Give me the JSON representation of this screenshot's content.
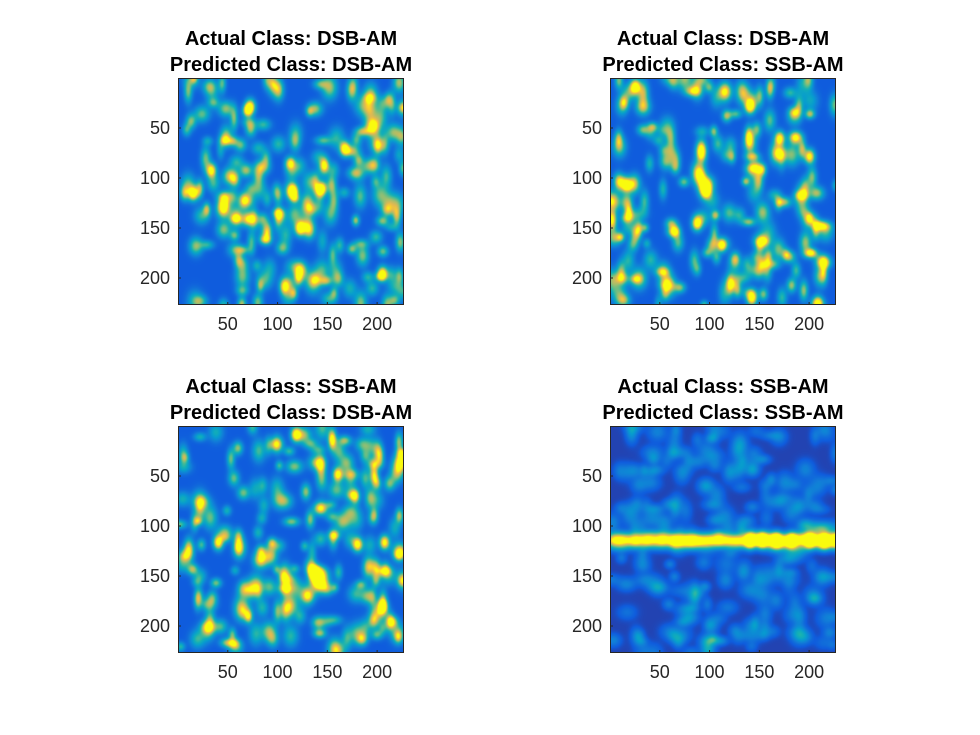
{
  "chart_data": [
    {
      "type": "heatmap",
      "title": [
        "Actual Class: DSB-AM",
        "Predicted Class: DSB-AM"
      ],
      "xlim": [
        0,
        227
      ],
      "ylim": [
        0,
        227
      ],
      "y_reversed": true,
      "xticks": [
        50,
        100,
        150,
        200
      ],
      "yticks": [
        50,
        100,
        150,
        200
      ],
      "xlabel": "",
      "ylabel": "",
      "colormap": "parula",
      "pattern": "scattered",
      "seed": 11,
      "hotspots": [
        [
          15,
          115
        ],
        [
          33,
          92
        ],
        [
          115,
          113
        ],
        [
          142,
          112
        ],
        [
          167,
          70
        ],
        [
          72,
          28
        ],
        [
          205,
          195
        ],
        [
          122,
          150
        ]
      ]
    },
    {
      "type": "heatmap",
      "title": [
        "Actual Class: DSB-AM",
        "Predicted Class: SSB-AM"
      ],
      "xlim": [
        0,
        227
      ],
      "ylim": [
        0,
        227
      ],
      "y_reversed": true,
      "xticks": [
        50,
        100,
        150,
        200
      ],
      "yticks": [
        50,
        100,
        150,
        200
      ],
      "xlabel": "",
      "ylabel": "",
      "colormap": "parula",
      "pattern": "scattered",
      "seed": 23,
      "hotspots": [
        [
          96,
          112
        ],
        [
          142,
          220
        ],
        [
          170,
          60
        ],
        [
          200,
          78
        ],
        [
          87,
          145
        ],
        [
          25,
          8
        ],
        [
          140,
          28
        ]
      ]
    },
    {
      "type": "heatmap",
      "title": [
        "Actual Class: SSB-AM",
        "Predicted Class: DSB-AM"
      ],
      "xlim": [
        0,
        227
      ],
      "ylim": [
        0,
        227
      ],
      "y_reversed": true,
      "xticks": [
        50,
        100,
        150,
        200
      ],
      "yticks": [
        50,
        100,
        150,
        200
      ],
      "xlabel": "",
      "ylabel": "",
      "colormap": "parula",
      "pattern": "scattered",
      "seed": 37,
      "hotspots": [
        [
          40,
          116
        ],
        [
          160,
          48
        ],
        [
          180,
          118
        ],
        [
          207,
          116
        ],
        [
          135,
          146
        ],
        [
          205,
          180
        ],
        [
          118,
          8
        ]
      ]
    },
    {
      "type": "heatmap",
      "title": [
        "Actual Class: SSB-AM",
        "Predicted Class: SSB-AM"
      ],
      "xlim": [
        0,
        227
      ],
      "ylim": [
        0,
        227
      ],
      "y_reversed": true,
      "xticks": [
        50,
        100,
        150,
        200
      ],
      "yticks": [
        50,
        100,
        150,
        200
      ],
      "xlabel": "",
      "ylabel": "",
      "colormap": "parula",
      "pattern": "horizontal-band",
      "seed": 51,
      "band_y": 114,
      "hotspots": [
        [
          140,
          114
        ],
        [
          152,
          114
        ],
        [
          167,
          114
        ],
        [
          182,
          114
        ],
        [
          200,
          114
        ],
        [
          215,
          114
        ],
        [
          227,
          114
        ]
      ]
    }
  ]
}
